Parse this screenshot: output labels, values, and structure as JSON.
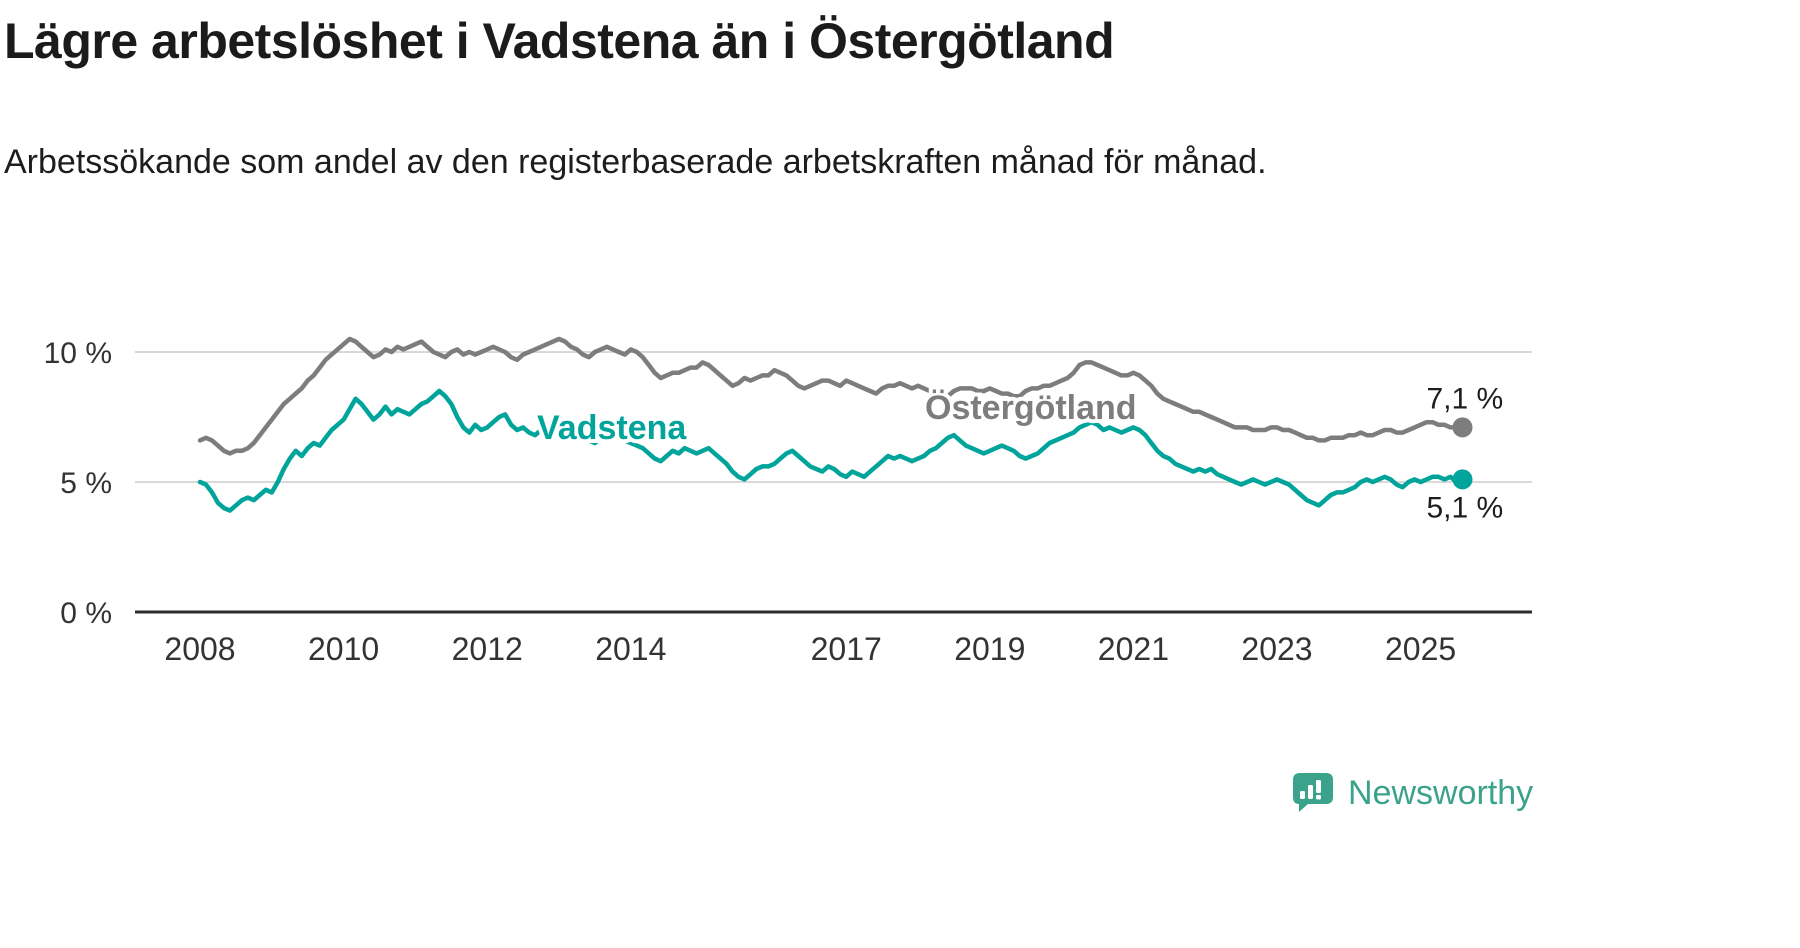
{
  "title": "Lägre arbetslöshet i Vadstena än i Östergötland",
  "subtitle": "Arbetssökande som andel av den registerbaserade arbetskraften månad för månad.",
  "footer": {
    "brand": "Newsworthy"
  },
  "colors": {
    "vadstena": "#00a49b",
    "ostergotland": "#7d7d7d",
    "axis": "#2e2e2e",
    "grid": "#d9d9d9",
    "tick_text": "#333333",
    "value_text": "#1d1d1d",
    "brand": "#3ba28b"
  },
  "chart_data": {
    "type": "line",
    "title": "Lägre arbetslöshet i Vadstena än i Östergötland",
    "subtitle": "Arbetssökande som andel av den registerbaserade arbetskraften månad för månad.",
    "unit": "%",
    "x_start_year": 2008,
    "x_interval": "monthly",
    "x_end": "2025-08",
    "x_ticks": [
      2008,
      2010,
      2012,
      2014,
      2017,
      2019,
      2021,
      2023,
      2025
    ],
    "y_ticks": [
      {
        "value": 0,
        "label": "0 %"
      },
      {
        "value": 5,
        "label": "5 %"
      },
      {
        "value": 10,
        "label": "10 %"
      }
    ],
    "ylim": [
      0,
      11.5
    ],
    "grid": true,
    "legend_position": "inline-labels",
    "series": [
      {
        "name": "Östergötland",
        "color": "#7d7d7d",
        "end_label": "7,1 %",
        "end_value": 7.1,
        "values": [
          6.6,
          6.7,
          6.6,
          6.4,
          6.2,
          6.1,
          6.2,
          6.2,
          6.3,
          6.5,
          6.8,
          7.1,
          7.4,
          7.7,
          8.0,
          8.2,
          8.4,
          8.6,
          8.9,
          9.1,
          9.4,
          9.7,
          9.9,
          10.1,
          10.3,
          10.5,
          10.4,
          10.2,
          10.0,
          9.8,
          9.9,
          10.1,
          10.0,
          10.2,
          10.1,
          10.2,
          10.3,
          10.4,
          10.2,
          10.0,
          9.9,
          9.8,
          10.0,
          10.1,
          9.9,
          10.0,
          9.9,
          10.0,
          10.1,
          10.2,
          10.1,
          10.0,
          9.8,
          9.7,
          9.9,
          10.0,
          10.1,
          10.2,
          10.3,
          10.4,
          10.5,
          10.4,
          10.2,
          10.1,
          9.9,
          9.8,
          10.0,
          10.1,
          10.2,
          10.1,
          10.0,
          9.9,
          10.1,
          10.0,
          9.8,
          9.5,
          9.2,
          9.0,
          9.1,
          9.2,
          9.2,
          9.3,
          9.4,
          9.4,
          9.6,
          9.5,
          9.3,
          9.1,
          8.9,
          8.7,
          8.8,
          9.0,
          8.9,
          9.0,
          9.1,
          9.1,
          9.3,
          9.2,
          9.1,
          8.9,
          8.7,
          8.6,
          8.7,
          8.8,
          8.9,
          8.9,
          8.8,
          8.7,
          8.9,
          8.8,
          8.7,
          8.6,
          8.5,
          8.4,
          8.6,
          8.7,
          8.7,
          8.8,
          8.7,
          8.6,
          8.7,
          8.6,
          8.5,
          8.5,
          8.4,
          8.3,
          8.5,
          8.6,
          8.6,
          8.6,
          8.5,
          8.5,
          8.6,
          8.5,
          8.4,
          8.4,
          8.3,
          8.3,
          8.5,
          8.6,
          8.6,
          8.7,
          8.7,
          8.8,
          8.9,
          9.0,
          9.2,
          9.5,
          9.6,
          9.6,
          9.5,
          9.4,
          9.3,
          9.2,
          9.1,
          9.1,
          9.2,
          9.1,
          8.9,
          8.7,
          8.4,
          8.2,
          8.1,
          8.0,
          7.9,
          7.8,
          7.7,
          7.7,
          7.6,
          7.5,
          7.4,
          7.3,
          7.2,
          7.1,
          7.1,
          7.1,
          7.0,
          7.0,
          7.0,
          7.1,
          7.1,
          7.0,
          7.0,
          6.9,
          6.8,
          6.7,
          6.7,
          6.6,
          6.6,
          6.7,
          6.7,
          6.7,
          6.8,
          6.8,
          6.9,
          6.8,
          6.8,
          6.9,
          7.0,
          7.0,
          6.9,
          6.9,
          7.0,
          7.1,
          7.2,
          7.3,
          7.3,
          7.2,
          7.2,
          7.1,
          7.1,
          7.1
        ]
      },
      {
        "name": "Vadstena",
        "color": "#00a49b",
        "end_label": "5,1 %",
        "end_value": 5.1,
        "values": [
          5.0,
          4.9,
          4.6,
          4.2,
          4.0,
          3.9,
          4.1,
          4.3,
          4.4,
          4.3,
          4.5,
          4.7,
          4.6,
          5.0,
          5.5,
          5.9,
          6.2,
          6.0,
          6.3,
          6.5,
          6.4,
          6.7,
          7.0,
          7.2,
          7.4,
          7.8,
          8.2,
          8.0,
          7.7,
          7.4,
          7.6,
          7.9,
          7.6,
          7.8,
          7.7,
          7.6,
          7.8,
          8.0,
          8.1,
          8.3,
          8.5,
          8.3,
          8.0,
          7.5,
          7.1,
          6.9,
          7.2,
          7.0,
          7.1,
          7.3,
          7.5,
          7.6,
          7.2,
          7.0,
          7.1,
          6.9,
          6.8,
          7.0,
          6.9,
          7.1,
          7.0,
          6.9,
          7.1,
          7.0,
          6.8,
          6.6,
          6.5,
          6.7,
          6.9,
          7.0,
          6.8,
          6.6,
          6.5,
          6.4,
          6.3,
          6.1,
          5.9,
          5.8,
          6.0,
          6.2,
          6.1,
          6.3,
          6.2,
          6.1,
          6.2,
          6.3,
          6.1,
          5.9,
          5.7,
          5.4,
          5.2,
          5.1,
          5.3,
          5.5,
          5.6,
          5.6,
          5.7,
          5.9,
          6.1,
          6.2,
          6.0,
          5.8,
          5.6,
          5.5,
          5.4,
          5.6,
          5.5,
          5.3,
          5.2,
          5.4,
          5.3,
          5.2,
          5.4,
          5.6,
          5.8,
          6.0,
          5.9,
          6.0,
          5.9,
          5.8,
          5.9,
          6.0,
          6.2,
          6.3,
          6.5,
          6.7,
          6.8,
          6.6,
          6.4,
          6.3,
          6.2,
          6.1,
          6.2,
          6.3,
          6.4,
          6.3,
          6.2,
          6.0,
          5.9,
          6.0,
          6.1,
          6.3,
          6.5,
          6.6,
          6.7,
          6.8,
          6.9,
          7.1,
          7.2,
          7.3,
          7.2,
          7.0,
          7.1,
          7.0,
          6.9,
          7.0,
          7.1,
          7.0,
          6.8,
          6.5,
          6.2,
          6.0,
          5.9,
          5.7,
          5.6,
          5.5,
          5.4,
          5.5,
          5.4,
          5.5,
          5.3,
          5.2,
          5.1,
          5.0,
          4.9,
          5.0,
          5.1,
          5.0,
          4.9,
          5.0,
          5.1,
          5.0,
          4.9,
          4.7,
          4.5,
          4.3,
          4.2,
          4.1,
          4.3,
          4.5,
          4.6,
          4.6,
          4.7,
          4.8,
          5.0,
          5.1,
          5.0,
          5.1,
          5.2,
          5.1,
          4.9,
          4.8,
          5.0,
          5.1,
          5.0,
          5.1,
          5.2,
          5.2,
          5.1,
          5.2,
          5.0,
          5.1
        ]
      }
    ]
  }
}
